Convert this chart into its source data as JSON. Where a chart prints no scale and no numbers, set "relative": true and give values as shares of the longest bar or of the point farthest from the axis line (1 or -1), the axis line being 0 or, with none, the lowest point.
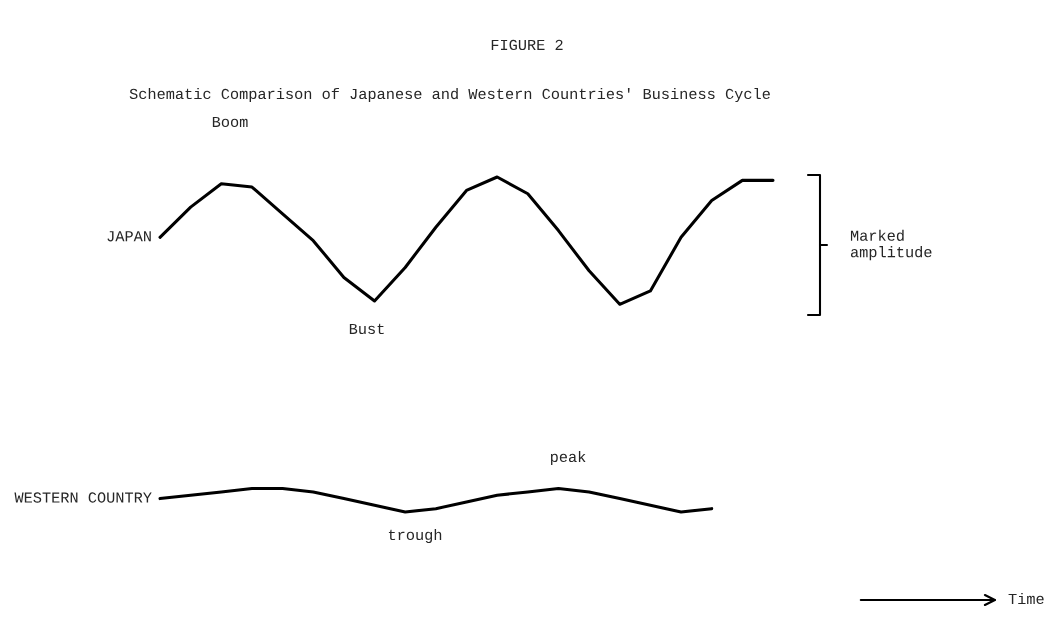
{
  "chart_data": {
    "type": "line",
    "relative": true,
    "title": "FIGURE 2",
    "subtitle": "Schematic Comparison of Japanese and Western Countries' Business Cycle",
    "categories": [
      null,
      null,
      null,
      null,
      null,
      null,
      null,
      null,
      null,
      null,
      null,
      null,
      null,
      null,
      null,
      null,
      null,
      null,
      null,
      null,
      null
    ],
    "series": [
      {
        "name": "JAPAN",
        "color": "#000000",
        "values": [
          0.82,
          0.91,
          0.98,
          0.97,
          0.89,
          0.81,
          0.7,
          0.63,
          0.73,
          0.85,
          0.96,
          1.0,
          0.95,
          0.84,
          0.72,
          0.62,
          0.66,
          0.82,
          0.93,
          0.99,
          0.99
        ]
      },
      {
        "name": "WESTERN COUNTRY",
        "color": "#000000",
        "values": [
          0.04,
          0.05,
          0.06,
          0.07,
          0.07,
          0.06,
          0.04,
          0.02,
          0.0,
          0.01,
          0.03,
          0.05,
          0.06,
          0.07,
          0.06,
          0.04,
          0.02,
          0.0,
          0.01,
          null,
          null
        ]
      }
    ],
    "annotations": [
      "Boom",
      "Bust",
      "peak",
      "trough",
      "Marked\namplitude",
      "Time"
    ],
    "legend": false
  }
}
